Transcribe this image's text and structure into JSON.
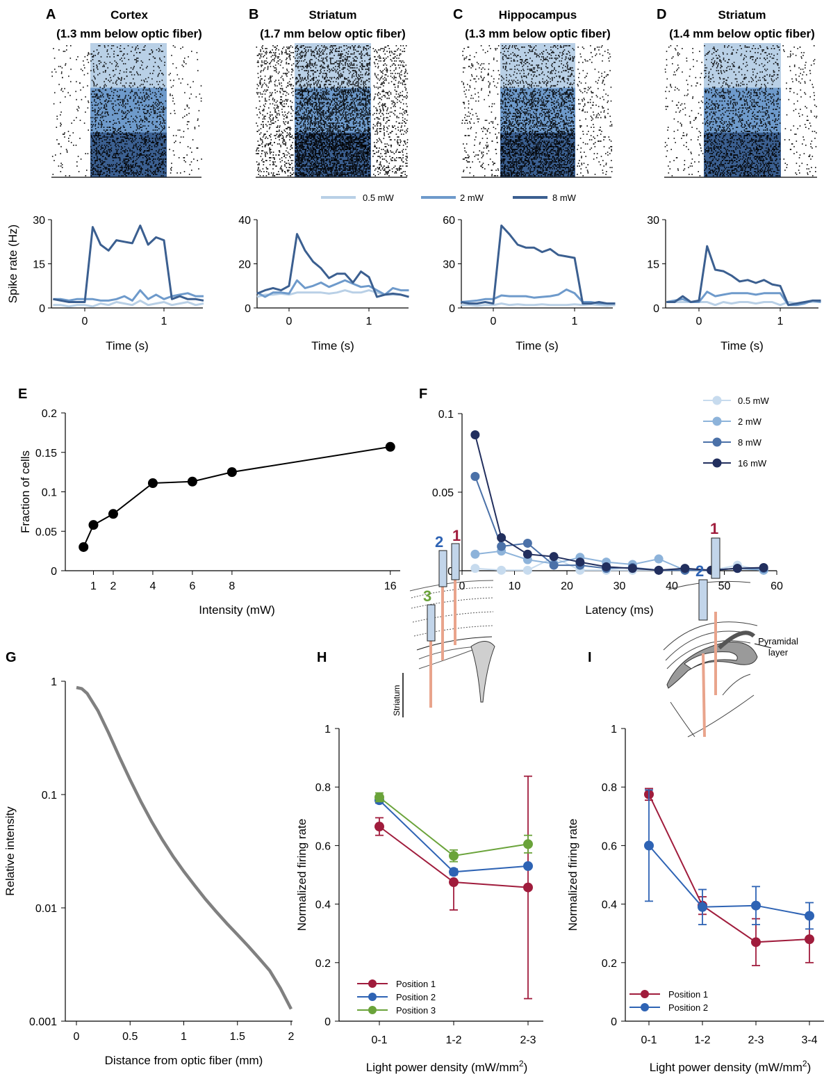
{
  "panels": {
    "A": {
      "letter": "A",
      "title1": "Cortex",
      "title2": "(1.3 mm below optic fiber)"
    },
    "B": {
      "letter": "B",
      "title1": "Striatum",
      "title2": "(1.7 mm below optic fiber)"
    },
    "C": {
      "letter": "C",
      "title1": "Hippocampus",
      "title2": "(1.3 mm below optic fiber)"
    },
    "D": {
      "letter": "D",
      "title1": "Striatum",
      "title2": "(1.4 mm below optic fiber)"
    },
    "E": {
      "letter": "E"
    },
    "F": {
      "letter": "F"
    },
    "G": {
      "letter": "G"
    },
    "H": {
      "letter": "H"
    },
    "I": {
      "letter": "I"
    }
  },
  "raster_legend": {
    "items": [
      "0.5 mW",
      "2 mW",
      "8 mW"
    ],
    "colors": [
      "#b9d0e6",
      "#6e9acb",
      "#3b5f90"
    ]
  },
  "diagram_H": {
    "probe_labels": [
      "1",
      "2",
      "3"
    ],
    "probe_colors": [
      "#a01c3c",
      "#2e63b4",
      "#6aa33a"
    ],
    "region_label": "Striatum"
  },
  "diagram_I": {
    "probe_labels": [
      "1",
      "2"
    ],
    "probe_colors": [
      "#a01c3c",
      "#2e63b4"
    ],
    "region_label": "Pyramidal layer",
    "region_label_lines": [
      "Pyramidal",
      "layer"
    ]
  },
  "chart_data": [
    {
      "panel": "A",
      "type": "line",
      "x": [
        -0.4,
        -0.3,
        -0.2,
        -0.1,
        0,
        0.1,
        0.2,
        0.3,
        0.4,
        0.5,
        0.6,
        0.7,
        0.8,
        0.9,
        1.0,
        1.1,
        1.2,
        1.3,
        1.4,
        1.5
      ],
      "series": [
        {
          "name": "0.5 mW",
          "color": "#b9d0e6",
          "values": [
            1,
            1,
            0.5,
            1,
            1,
            0.5,
            1.5,
            1,
            2,
            1.5,
            1,
            2.5,
            1,
            1.5,
            2,
            1,
            1.5,
            2,
            1,
            1.5
          ]
        },
        {
          "name": "2 mW",
          "color": "#6e9acb",
          "values": [
            3,
            3,
            2.5,
            3,
            3,
            3,
            2.5,
            2.5,
            3,
            4,
            2.5,
            6,
            3,
            4.5,
            3,
            4,
            4.5,
            5,
            4,
            4
          ]
        },
        {
          "name": "8 mW",
          "color": "#3b5f90",
          "values": [
            3,
            2.5,
            2,
            2,
            2,
            27.5,
            21.5,
            19.5,
            23,
            22.5,
            22,
            28,
            21.5,
            24,
            23,
            3,
            4,
            3,
            3,
            2.5
          ]
        }
      ],
      "xlabel": "Time (s)",
      "ylabel": "Spike rate (Hz)",
      "ylim": [
        0,
        30
      ],
      "yticks": [
        0,
        15,
        30
      ],
      "xticks": [
        0,
        1
      ]
    },
    {
      "panel": "B",
      "type": "line",
      "x": [
        -0.4,
        -0.3,
        -0.2,
        -0.1,
        0,
        0.1,
        0.2,
        0.3,
        0.4,
        0.5,
        0.6,
        0.7,
        0.8,
        0.9,
        1.0,
        1.1,
        1.2,
        1.3,
        1.4,
        1.5
      ],
      "series": [
        {
          "name": "0.5 mW",
          "color": "#b9d0e6",
          "values": [
            5,
            6,
            6,
            6.5,
            6,
            7,
            7,
            7,
            7,
            6.5,
            7,
            8,
            7,
            7,
            8,
            7,
            6,
            6,
            6,
            5
          ]
        },
        {
          "name": "2 mW",
          "color": "#6e9acb",
          "values": [
            7,
            5,
            7,
            7,
            6.5,
            12.5,
            9,
            10,
            11.5,
            9.5,
            11,
            12.5,
            11,
            9.5,
            10,
            8,
            6,
            9,
            8,
            8
          ]
        },
        {
          "name": "8 mW",
          "color": "#3b5f90",
          "values": [
            6.5,
            8,
            9,
            8,
            10,
            33.5,
            26,
            21,
            18,
            13.5,
            15.5,
            15.5,
            11.5,
            16.5,
            14,
            5,
            6,
            6.5,
            6,
            5
          ]
        }
      ],
      "xlabel": "Time (s)",
      "ylabel": "",
      "ylim": [
        0,
        40
      ],
      "yticks": [
        0,
        20,
        40
      ],
      "xticks": [
        0,
        1
      ]
    },
    {
      "panel": "C",
      "type": "line",
      "x": [
        -0.4,
        -0.3,
        -0.2,
        -0.1,
        0,
        0.1,
        0.2,
        0.3,
        0.4,
        0.5,
        0.6,
        0.7,
        0.8,
        0.9,
        1.0,
        1.1,
        1.2,
        1.3,
        1.4,
        1.5
      ],
      "series": [
        {
          "name": "0.5 mW",
          "color": "#b9d0e6",
          "values": [
            2,
            2,
            1.5,
            2,
            2,
            3,
            2,
            2.5,
            2,
            2,
            2.5,
            2,
            2,
            2,
            2.5,
            2,
            2.5,
            2,
            1.5,
            2
          ]
        },
        {
          "name": "2 mW",
          "color": "#6e9acb",
          "values": [
            4,
            4.5,
            5,
            6,
            6,
            8.5,
            8,
            8,
            8,
            7,
            7.5,
            8,
            9,
            12.5,
            10,
            4,
            4,
            3,
            3,
            3
          ]
        },
        {
          "name": "8 mW",
          "color": "#3b5f90",
          "values": [
            4,
            3,
            3,
            4,
            3,
            56,
            50,
            43,
            41,
            41,
            38,
            40,
            36,
            35,
            34,
            3,
            3,
            4,
            3,
            3
          ]
        }
      ],
      "xlabel": "Time (s)",
      "ylabel": "",
      "ylim": [
        0,
        60
      ],
      "yticks": [
        0,
        30,
        60
      ],
      "xticks": [
        0,
        1
      ]
    },
    {
      "panel": "D",
      "type": "line",
      "x": [
        -0.4,
        -0.3,
        -0.2,
        -0.1,
        0,
        0.1,
        0.2,
        0.3,
        0.4,
        0.5,
        0.6,
        0.7,
        0.8,
        0.9,
        1.0,
        1.1,
        1.2,
        1.3,
        1.4,
        1.5
      ],
      "series": [
        {
          "name": "0.5 mW",
          "color": "#b9d0e6",
          "values": [
            2,
            2,
            2,
            2,
            2,
            2,
            1,
            2,
            1.5,
            2,
            2,
            1.5,
            2,
            2,
            1,
            2,
            1.5,
            2,
            2,
            2
          ]
        },
        {
          "name": "2 mW",
          "color": "#6e9acb",
          "values": [
            2,
            2.5,
            3,
            2,
            2,
            5.5,
            4,
            4.5,
            5,
            5,
            5,
            4.5,
            5,
            5,
            5,
            1,
            1,
            1.5,
            2.5,
            2
          ]
        },
        {
          "name": "8 mW",
          "color": "#3b5f90",
          "values": [
            2,
            2,
            4,
            2,
            2.5,
            21,
            13,
            12.5,
            11,
            9,
            9.5,
            8.5,
            9.5,
            8,
            7.5,
            1,
            1.5,
            2,
            2.5,
            2.5
          ]
        }
      ],
      "xlabel": "Time (s)",
      "ylabel": "",
      "ylim": [
        0,
        30
      ],
      "yticks": [
        0,
        15,
        30
      ],
      "xticks": [
        0,
        1
      ]
    },
    {
      "panel": "E",
      "type": "line",
      "x": [
        0.5,
        1,
        2,
        4,
        6,
        8,
        16
      ],
      "y": [
        0.03,
        0.058,
        0.072,
        0.111,
        0.113,
        0.125,
        0.157
      ],
      "xlabel": "Intensity (mW)",
      "ylabel": "Fraction of cells",
      "xlim": [
        0,
        16.5
      ],
      "ylim": [
        0,
        0.2
      ],
      "xticks": [
        1,
        2,
        4,
        6,
        8,
        16
      ],
      "yticks": [
        0,
        0.05,
        0.1,
        0.15,
        0.2
      ],
      "ytick_labels": [
        "0",
        "0.05",
        "0.1",
        "0.15",
        "0.2"
      ]
    },
    {
      "panel": "F",
      "type": "line",
      "x": [
        2.5,
        7.5,
        12.5,
        17.5,
        22.5,
        27.5,
        32.5,
        37.5,
        42.5,
        47.5,
        52.5,
        57.5
      ],
      "series": [
        {
          "name": "0.5 mW",
          "color": "#c7dbee",
          "values": [
            0.0015,
            0.0003,
            0.0003,
            0.0085,
            0.0003,
            0.0003,
            0.0003,
            0.0003,
            0.0003,
            0.0003,
            0.0035,
            0.0003
          ]
        },
        {
          "name": "2 mW",
          "color": "#8db3da",
          "values": [
            0.0105,
            0.0125,
            0.007,
            0.0045,
            0.0085,
            0.0055,
            0.004,
            0.0075,
            0.0003,
            0.0003,
            0.0015,
            0.0003
          ]
        },
        {
          "name": "8 mW",
          "color": "#4b71a8",
          "values": [
            0.06,
            0.0155,
            0.0175,
            0.0035,
            0.0035,
            0.0015,
            0.002,
            0.0003,
            0.0003,
            0.0003,
            0.0015,
            0.0015
          ]
        },
        {
          "name": "16 mW",
          "color": "#222f5e",
          "values": [
            0.0865,
            0.021,
            0.0105,
            0.009,
            0.0055,
            0.0025,
            0.0015,
            0.0003,
            0.0015,
            0.0003,
            0.0015,
            0.002
          ]
        }
      ],
      "xlabel": "Latency (ms)",
      "ylabel": "",
      "xlim": [
        0,
        60
      ],
      "ylim": [
        0,
        0.1
      ],
      "xticks": [
        0,
        10,
        20,
        30,
        40,
        50,
        60
      ],
      "yticks": [
        0,
        0.05,
        0.1
      ],
      "ytick_labels": [
        "0",
        "0.05",
        "0.1"
      ]
    },
    {
      "panel": "G",
      "type": "line",
      "scale_y": "log",
      "x": [
        0,
        0.05,
        0.1,
        0.2,
        0.3,
        0.4,
        0.5,
        0.6,
        0.7,
        0.8,
        0.9,
        1.0,
        1.1,
        1.2,
        1.3,
        1.4,
        1.5,
        1.6,
        1.7,
        1.8,
        1.9,
        2.0
      ],
      "y": [
        0.88,
        0.86,
        0.78,
        0.55,
        0.35,
        0.215,
        0.135,
        0.087,
        0.058,
        0.04,
        0.0285,
        0.021,
        0.0158,
        0.012,
        0.0093,
        0.0073,
        0.0058,
        0.0046,
        0.0036,
        0.0028,
        0.00195,
        0.00128
      ],
      "color": "#808080",
      "xlabel": "Distance from optic fiber (mm)",
      "ylabel": "Relative intensity",
      "xlim": [
        0,
        2
      ],
      "ylim": [
        0.001,
        1
      ],
      "xticks": [
        0,
        0.5,
        1,
        1.5,
        2
      ],
      "xtick_labels": [
        "0",
        "0.5",
        "1",
        "1.5",
        "2"
      ],
      "yticks": [
        0.001,
        0.01,
        0.1,
        1
      ],
      "ytick_labels": [
        "0.001",
        "0.01",
        "0.1",
        "1"
      ]
    },
    {
      "panel": "H",
      "type": "line",
      "categories": [
        "0-1",
        "1-2",
        "2-3"
      ],
      "series": [
        {
          "name": "Position 1",
          "color": "#a01c3c",
          "values": [
            0.665,
            0.475,
            0.457
          ],
          "err_lo": [
            0.03,
            0.095,
            0.38
          ],
          "err_hi": [
            0.03,
            0.0,
            0.38
          ]
        },
        {
          "name": "Position 2",
          "color": "#2e63b4",
          "values": [
            0.755,
            0.51,
            0.53
          ],
          "err_lo": [
            0.01,
            0.01,
            0.0
          ],
          "err_hi": [
            0.01,
            0.01,
            0.0
          ]
        },
        {
          "name": "Position 3",
          "color": "#6aa33a",
          "values": [
            0.765,
            0.565,
            0.605
          ],
          "err_lo": [
            0.015,
            0.02,
            0.03
          ],
          "err_hi": [
            0.015,
            0.02,
            0.03
          ]
        }
      ],
      "xlabel_main": "Light power density (mW/mm",
      "xlabel_sup": "2",
      "xlabel_tail": ")",
      "ylabel": "Normalized firing rate",
      "ylim": [
        0,
        1
      ],
      "yticks": [
        0,
        0.2,
        0.4,
        0.6,
        0.8,
        1
      ],
      "ytick_labels": [
        "0",
        "0.2",
        "0.4",
        "0.6",
        "0.8",
        "1"
      ]
    },
    {
      "panel": "I",
      "type": "line",
      "categories": [
        "0-1",
        "1-2",
        "2-3",
        "3-4"
      ],
      "series": [
        {
          "name": "Position 1",
          "color": "#a01c3c",
          "values": [
            0.775,
            0.395,
            0.27,
            0.28
          ],
          "err_lo": [
            0.02,
            0.03,
            0.08,
            0.08
          ],
          "err_hi": [
            0.02,
            0.03,
            0.08,
            0.08
          ]
        },
        {
          "name": "Position 2",
          "color": "#2e63b4",
          "values": [
            0.6,
            0.39,
            0.395,
            0.36
          ],
          "err_lo": [
            0.19,
            0.06,
            0.065,
            0.045
          ],
          "err_hi": [
            0.19,
            0.06,
            0.065,
            0.045
          ]
        }
      ],
      "xlabel_main": "Light power density (mW/mm",
      "xlabel_sup": "2",
      "xlabel_tail": ")",
      "ylabel": "Normalized firing rate",
      "ylim": [
        0,
        1
      ],
      "yticks": [
        0,
        0.2,
        0.4,
        0.6,
        0.8,
        1
      ],
      "ytick_labels": [
        "0",
        "0.2",
        "0.4",
        "0.6",
        "0.8",
        "1"
      ]
    }
  ]
}
